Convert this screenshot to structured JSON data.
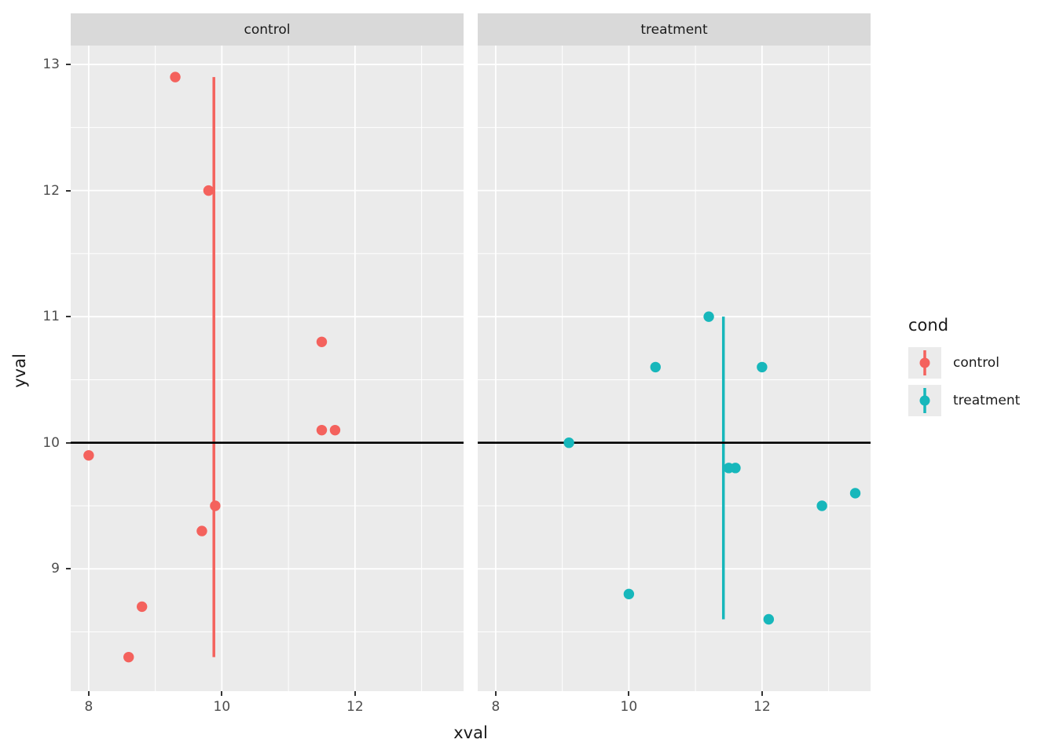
{
  "chart_data": {
    "type": "scatter",
    "xlabel": "xval",
    "ylabel": "yval",
    "facet_variable": "cond",
    "facets": [
      {
        "label": "control",
        "color": "#F4625D",
        "points": [
          [
            11.5,
            10.8
          ],
          [
            9.3,
            12.9
          ],
          [
            8.0,
            9.9
          ],
          [
            11.5,
            10.1
          ],
          [
            8.6,
            8.3
          ],
          [
            9.9,
            9.5
          ],
          [
            8.8,
            8.7
          ],
          [
            11.7,
            10.1
          ],
          [
            9.7,
            9.3
          ],
          [
            9.8,
            12.0
          ]
        ],
        "vline": {
          "x": 9.88,
          "y_min": 8.3,
          "y_max": 12.9
        }
      },
      {
        "label": "treatment",
        "color": "#17B7BB",
        "points": [
          [
            10.4,
            10.6
          ],
          [
            12.1,
            8.6
          ],
          [
            11.2,
            11.0
          ],
          [
            10.0,
            8.8
          ],
          [
            12.9,
            9.5
          ],
          [
            9.1,
            10.0
          ],
          [
            13.4,
            9.6
          ],
          [
            11.6,
            9.8
          ],
          [
            11.5,
            9.8
          ],
          [
            12.0,
            10.6
          ]
        ],
        "vline": {
          "x": 11.42,
          "y_min": 8.6,
          "y_max": 11.0
        }
      }
    ],
    "hline": {
      "y": 10,
      "color": "#000000"
    },
    "x_axis": {
      "range": [
        7.73,
        13.63
      ],
      "major_ticks": [
        8,
        10,
        12
      ],
      "minor_ticks": [
        9,
        11,
        13
      ],
      "tick_labels": [
        "8",
        "10",
        "12"
      ]
    },
    "y_axis": {
      "range": [
        8.03,
        13.15
      ],
      "major_ticks": [
        9,
        10,
        11,
        12,
        13
      ],
      "minor_ticks": [
        8.5,
        9.5,
        10.5,
        11.5,
        12.5
      ],
      "tick_labels": [
        "9",
        "10",
        "11",
        "12",
        "13"
      ]
    },
    "grid": true,
    "legend": {
      "title": "cond",
      "position": "right",
      "entries": [
        {
          "label": "control",
          "color": "#F4625D"
        },
        {
          "label": "treatment",
          "color": "#17B7BB"
        }
      ]
    }
  },
  "theme": {
    "panel_bg": "#EBEBEB",
    "strip_bg": "#D9D9D9",
    "grid_color": "#FFFFFF",
    "hline_color": "#000000",
    "tick_text_color": "#4D4D4D",
    "text_color": "#1A1A1A",
    "tick_mark_color": "#333333",
    "legend_key_bg": "#EBEBEB"
  }
}
